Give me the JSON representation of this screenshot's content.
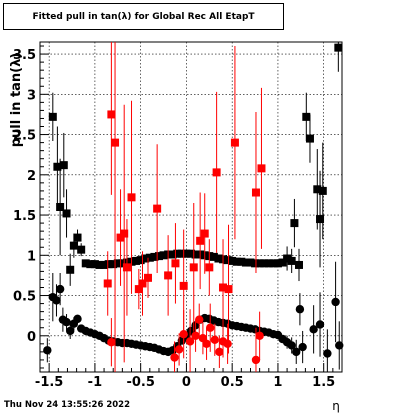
{
  "chart_data": {
    "type": "scatter",
    "title": "Fitted pull in tan(λ) for Global Rec All EtapT",
    "xlabel": "η",
    "ylabel": "pull in tan(λ)",
    "xlim": [
      -1.6,
      1.7
    ],
    "ylim": [
      -0.45,
      3.65
    ],
    "xticks": [
      -1.5,
      -1,
      -0.5,
      0,
      0.5,
      1,
      1.5
    ],
    "yticks": [
      0,
      0.5,
      1,
      1.5,
      2,
      2.5,
      3,
      3.5
    ],
    "grid": true,
    "series": [
      {
        "marker": "square",
        "color": "#000000",
        "points": [
          {
            "x": -1.46,
            "y": 2.72,
            "e": 0.3
          },
          {
            "x": -1.41,
            "y": 2.1,
            "e": 0.5
          },
          {
            "x": -1.38,
            "y": 1.6,
            "e": 0.6
          },
          {
            "x": -1.34,
            "y": 2.12,
            "e": 0.4
          },
          {
            "x": -1.31,
            "y": 1.52,
            "e": 0.3
          },
          {
            "x": -1.27,
            "y": 0.82,
            "e": 0.2
          },
          {
            "x": -1.23,
            "y": 1.12,
            "e": 0.15
          },
          {
            "x": -1.19,
            "y": 1.22,
            "e": 0.1
          },
          {
            "x": -1.15,
            "y": 1.07,
            "e": 0.08
          },
          {
            "x": -1.1,
            "y": 0.9
          },
          {
            "x": -1.05,
            "y": 0.89
          },
          {
            "x": -1.0,
            "y": 0.89
          },
          {
            "x": -0.95,
            "y": 0.88
          },
          {
            "x": -0.9,
            "y": 0.88
          },
          {
            "x": -0.85,
            "y": 0.89
          },
          {
            "x": -0.8,
            "y": 0.89
          },
          {
            "x": -0.75,
            "y": 0.9
          },
          {
            "x": -0.7,
            "y": 0.9
          },
          {
            "x": -0.65,
            "y": 0.91
          },
          {
            "x": -0.6,
            "y": 0.92
          },
          {
            "x": -0.55,
            "y": 0.93
          },
          {
            "x": -0.5,
            "y": 0.94
          },
          {
            "x": -0.45,
            "y": 0.96
          },
          {
            "x": -0.4,
            "y": 0.97
          },
          {
            "x": -0.35,
            "y": 0.98
          },
          {
            "x": -0.3,
            "y": 0.99
          },
          {
            "x": -0.25,
            "y": 1.0
          },
          {
            "x": -0.2,
            "y": 1.01
          },
          {
            "x": -0.15,
            "y": 1.01
          },
          {
            "x": -0.1,
            "y": 1.02
          },
          {
            "x": -0.05,
            "y": 1.02
          },
          {
            "x": 0.0,
            "y": 1.02
          },
          {
            "x": 0.05,
            "y": 1.02
          },
          {
            "x": 0.1,
            "y": 1.01
          },
          {
            "x": 0.15,
            "y": 1.01
          },
          {
            "x": 0.2,
            "y": 1.0
          },
          {
            "x": 0.25,
            "y": 0.99
          },
          {
            "x": 0.3,
            "y": 0.98
          },
          {
            "x": 0.35,
            "y": 0.96
          },
          {
            "x": 0.4,
            "y": 0.95
          },
          {
            "x": 0.45,
            "y": 0.94
          },
          {
            "x": 0.5,
            "y": 0.93
          },
          {
            "x": 0.55,
            "y": 0.92
          },
          {
            "x": 0.6,
            "y": 0.92
          },
          {
            "x": 0.65,
            "y": 0.91
          },
          {
            "x": 0.7,
            "y": 0.91
          },
          {
            "x": 0.75,
            "y": 0.9
          },
          {
            "x": 0.8,
            "y": 0.9
          },
          {
            "x": 0.85,
            "y": 0.9
          },
          {
            "x": 0.9,
            "y": 0.9
          },
          {
            "x": 0.95,
            "y": 0.9
          },
          {
            "x": 1.0,
            "y": 0.9
          },
          {
            "x": 1.05,
            "y": 0.91
          },
          {
            "x": 1.1,
            "y": 0.96,
            "e": 0.15
          },
          {
            "x": 1.15,
            "y": 0.93,
            "e": 0.15
          },
          {
            "x": 1.18,
            "y": 1.4,
            "e": 0.3
          },
          {
            "x": 1.23,
            "y": 0.88,
            "e": 0.2
          },
          {
            "x": 1.31,
            "y": 2.72,
            "e": 0.3
          },
          {
            "x": 1.35,
            "y": 2.45,
            "e": 0.3
          },
          {
            "x": 1.43,
            "y": 1.82,
            "e": 0.5
          },
          {
            "x": 1.46,
            "y": 1.45,
            "e": 0.6
          },
          {
            "x": 1.49,
            "y": 1.8,
            "e": 0.6
          },
          {
            "x": 1.66,
            "y": 3.58,
            "e": 0.3
          }
        ]
      },
      {
        "marker": "circle",
        "color": "#000000",
        "points": [
          {
            "x": -1.52,
            "y": -0.18,
            "e": 0.15
          },
          {
            "x": -1.46,
            "y": 0.48,
            "e": 0.3
          },
          {
            "x": -1.42,
            "y": 0.44,
            "e": 0.2
          },
          {
            "x": -1.38,
            "y": 0.58,
            "e": 0.2
          },
          {
            "x": -1.35,
            "y": 0.2,
            "e": 0.15
          },
          {
            "x": -1.31,
            "y": 0.17,
            "e": 0.1
          },
          {
            "x": -1.27,
            "y": 0.06,
            "e": 0.1
          },
          {
            "x": -1.23,
            "y": 0.15,
            "e": 0.08
          },
          {
            "x": -1.19,
            "y": 0.21,
            "e": 0.05
          },
          {
            "x": -1.15,
            "y": 0.09,
            "e": 0.05
          },
          {
            "x": -1.1,
            "y": 0.06
          },
          {
            "x": -1.05,
            "y": 0.04
          },
          {
            "x": -1.0,
            "y": 0.02
          },
          {
            "x": -0.95,
            "y": 0.0
          },
          {
            "x": -0.9,
            "y": -0.03
          },
          {
            "x": -0.85,
            "y": -0.06
          },
          {
            "x": -0.8,
            "y": -0.07
          },
          {
            "x": -0.75,
            "y": -0.08
          },
          {
            "x": -0.7,
            "y": -0.09
          },
          {
            "x": -0.65,
            "y": -0.09
          },
          {
            "x": -0.6,
            "y": -0.1
          },
          {
            "x": -0.55,
            "y": -0.11
          },
          {
            "x": -0.5,
            "y": -0.12
          },
          {
            "x": -0.45,
            "y": -0.13
          },
          {
            "x": -0.4,
            "y": -0.14
          },
          {
            "x": -0.35,
            "y": -0.15
          },
          {
            "x": -0.3,
            "y": -0.17
          },
          {
            "x": -0.25,
            "y": -0.19
          },
          {
            "x": -0.2,
            "y": -0.2
          },
          {
            "x": -0.15,
            "y": -0.18
          },
          {
            "x": -0.1,
            "y": -0.13
          },
          {
            "x": -0.05,
            "y": -0.06
          },
          {
            "x": 0.0,
            "y": 0.0
          },
          {
            "x": 0.05,
            "y": 0.06
          },
          {
            "x": 0.1,
            "y": 0.13
          },
          {
            "x": 0.15,
            "y": 0.2
          },
          {
            "x": 0.2,
            "y": 0.22
          },
          {
            "x": 0.25,
            "y": 0.21
          },
          {
            "x": 0.3,
            "y": 0.19
          },
          {
            "x": 0.35,
            "y": 0.17
          },
          {
            "x": 0.4,
            "y": 0.16
          },
          {
            "x": 0.45,
            "y": 0.15
          },
          {
            "x": 0.5,
            "y": 0.13
          },
          {
            "x": 0.55,
            "y": 0.12
          },
          {
            "x": 0.6,
            "y": 0.11
          },
          {
            "x": 0.65,
            "y": 0.1
          },
          {
            "x": 0.7,
            "y": 0.09
          },
          {
            "x": 0.75,
            "y": 0.08
          },
          {
            "x": 0.8,
            "y": 0.06
          },
          {
            "x": 0.85,
            "y": 0.05
          },
          {
            "x": 0.9,
            "y": 0.04
          },
          {
            "x": 0.95,
            "y": 0.02
          },
          {
            "x": 1.0,
            "y": 0.01
          },
          {
            "x": 1.05,
            "y": -0.04,
            "e": 0.05
          },
          {
            "x": 1.1,
            "y": -0.08,
            "e": 0.08
          },
          {
            "x": 1.15,
            "y": -0.12,
            "e": 0.1
          },
          {
            "x": 1.2,
            "y": -0.2,
            "e": 0.15
          },
          {
            "x": 1.24,
            "y": 0.33,
            "e": 0.2
          },
          {
            "x": 1.27,
            "y": -0.14,
            "e": 0.2
          },
          {
            "x": 1.39,
            "y": 0.08,
            "e": 0.3
          },
          {
            "x": 1.46,
            "y": 0.14,
            "e": 0.4
          },
          {
            "x": 1.54,
            "y": -0.22,
            "e": 0.3
          },
          {
            "x": 1.63,
            "y": 0.42,
            "e": 0.5
          },
          {
            "x": 1.67,
            "y": -0.12,
            "e": 0.3
          }
        ]
      },
      {
        "marker": "square",
        "color": "#ff0000",
        "points": [
          {
            "x": -0.86,
            "y": 0.65,
            "e": 0.4
          },
          {
            "x": -0.82,
            "y": 2.75,
            "e": 1.0
          },
          {
            "x": -0.78,
            "y": 2.4,
            "e": 3.0
          },
          {
            "x": -0.72,
            "y": 1.22,
            "e": 0.6
          },
          {
            "x": -0.68,
            "y": 1.27,
            "e": 1.6
          },
          {
            "x": -0.65,
            "y": 0.85,
            "e": 0.6
          },
          {
            "x": -0.6,
            "y": 1.72,
            "e": 1.2
          },
          {
            "x": -0.52,
            "y": 0.58,
            "e": 0.25
          },
          {
            "x": -0.48,
            "y": 0.65,
            "e": 0.4
          },
          {
            "x": -0.42,
            "y": 0.72,
            "e": 0.25
          },
          {
            "x": -0.32,
            "y": 1.58,
            "e": 0.8
          },
          {
            "x": -0.2,
            "y": 0.75,
            "e": 0.5
          },
          {
            "x": -0.12,
            "y": 0.9,
            "e": 0.5
          },
          {
            "x": -0.03,
            "y": 0.62,
            "e": 0.7
          },
          {
            "x": 0.08,
            "y": 0.85,
            "e": 0.8
          },
          {
            "x": 0.15,
            "y": 1.18,
            "e": 0.6
          },
          {
            "x": 0.2,
            "y": 1.27,
            "e": 0.5
          },
          {
            "x": 0.25,
            "y": 0.85,
            "e": 0.35
          },
          {
            "x": 0.33,
            "y": 2.03,
            "e": 1.0
          },
          {
            "x": 0.4,
            "y": 0.6,
            "e": 0.6
          },
          {
            "x": 0.46,
            "y": 0.58,
            "e": 0.8
          },
          {
            "x": 0.53,
            "y": 2.4,
            "e": 1.2
          },
          {
            "x": 0.76,
            "y": 1.78,
            "e": 1.0
          },
          {
            "x": 0.82,
            "y": 2.08,
            "e": 1.0
          }
        ]
      },
      {
        "marker": "circle",
        "color": "#ff0000",
        "points": [
          {
            "x": -0.82,
            "y": -0.08,
            "e": 0.3
          },
          {
            "x": -0.13,
            "y": -0.27,
            "e": 0.2
          },
          {
            "x": -0.08,
            "y": -0.17,
            "e": 0.2
          },
          {
            "x": -0.03,
            "y": 0.02,
            "e": 0.3
          },
          {
            "x": 0.04,
            "y": -0.07,
            "e": 0.4
          },
          {
            "x": 0.1,
            "y": 0.0,
            "e": 0.2
          },
          {
            "x": 0.14,
            "y": 0.2,
            "e": 0.2
          },
          {
            "x": 0.18,
            "y": -0.03,
            "e": 0.2
          },
          {
            "x": 0.22,
            "y": -0.1,
            "e": 0.2
          },
          {
            "x": 0.26,
            "y": 0.1,
            "e": 0.3
          },
          {
            "x": 0.31,
            "y": -0.05,
            "e": 0.2
          },
          {
            "x": 0.36,
            "y": -0.2,
            "e": 0.2
          },
          {
            "x": 0.4,
            "y": -0.07,
            "e": 0.2
          },
          {
            "x": 0.45,
            "y": -0.1,
            "e": 0.25
          },
          {
            "x": 0.76,
            "y": -0.3,
            "e": 0.4
          },
          {
            "x": 0.8,
            "y": 0.0,
            "e": 0.3
          }
        ]
      }
    ]
  },
  "footer": {
    "timestamp": "Thu Nov 24 13:55:26 2022"
  }
}
